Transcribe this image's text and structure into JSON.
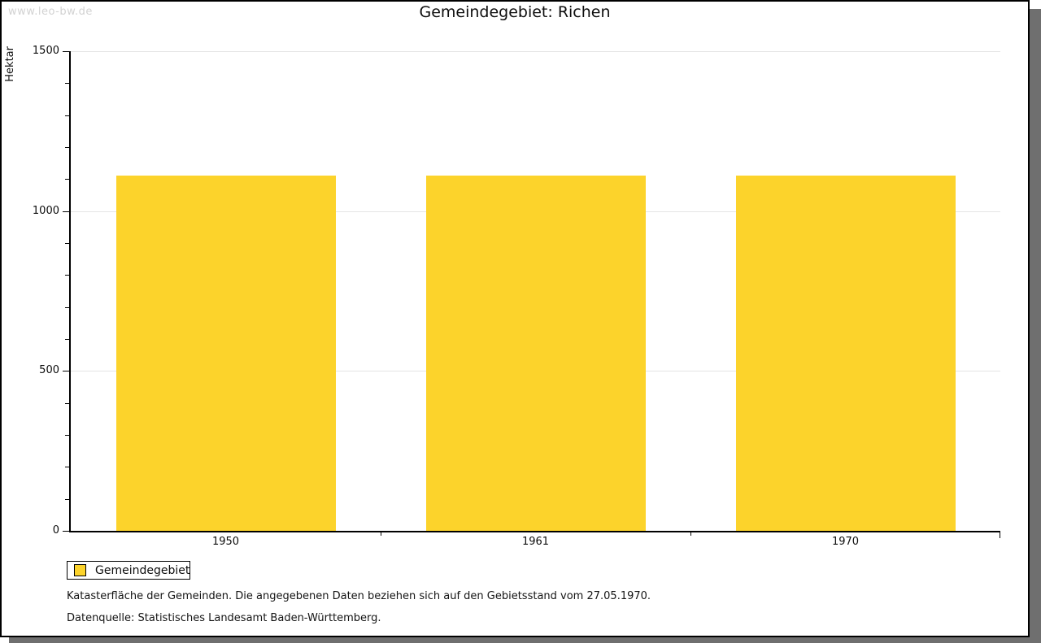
{
  "page": {
    "watermark": "www.leo-bw.de",
    "title": "Gemeindegebiet: Richen"
  },
  "chart_data": {
    "type": "bar",
    "title": "Gemeindegebiet: Richen",
    "xlabel": "",
    "ylabel": "Hektar",
    "categories": [
      "1950",
      "1961",
      "1970"
    ],
    "series": [
      {
        "name": "Gemeindegebiet",
        "values": [
          1110,
          1110,
          1110
        ]
      }
    ],
    "ylim": [
      0,
      1500
    ],
    "y_major_ticks": [
      0,
      500,
      1000,
      1500
    ],
    "y_minor_step": 100,
    "grid": true,
    "bar_color": "#fcd32b",
    "legend_position": "bottom-left"
  },
  "legend": {
    "items": [
      {
        "label": "Gemeindegebiet",
        "color": "#fcd32b"
      }
    ]
  },
  "footer": {
    "line1": "Katasterfläche der Gemeinden. Die angegebenen Daten beziehen sich auf den Gebietsstand vom 27.05.1970.",
    "line2": "Datenquelle: Statistisches Landesamt Baden-Württemberg."
  },
  "colors": {
    "bar": "#fcd32b",
    "gridline": "#e4e4e4",
    "axis": "#000000",
    "watermark_text": "#d2d2d2",
    "shadow": "#6f6f6f",
    "background": "#ffffff"
  }
}
